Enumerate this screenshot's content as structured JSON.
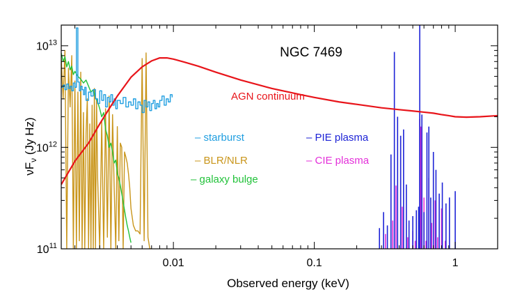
{
  "chart_data": {
    "type": "line",
    "title": "NGC 7469",
    "xlabel": "Observed energy (keV)",
    "ylabel_main": "νF",
    "ylabel_sub": "ν",
    "ylabel_unit": " (Jy Hz)",
    "xscale": "log",
    "yscale": "log",
    "xlim": [
      0.0016,
      2.0
    ],
    "ylim": [
      100000000000.0,
      16000000000000.0
    ],
    "x_ticks": [
      {
        "value": 0.01,
        "label": "0.01"
      },
      {
        "value": 0.1,
        "label": "0.1"
      },
      {
        "value": 1,
        "label": "1"
      }
    ],
    "y_ticks": [
      {
        "value": 100000000000.0,
        "base": "10",
        "exp": "11"
      },
      {
        "value": 1000000000000.0,
        "base": "10",
        "exp": "12"
      },
      {
        "value": 10000000000000.0,
        "base": "10",
        "exp": "13"
      }
    ],
    "annotation": {
      "text": "AGN continuum",
      "color": "#e8141a"
    },
    "legend": [
      {
        "text": "– starburst",
        "color": "#1f9ee0"
      },
      {
        "text": "– BLR/NLR",
        "color": "#c9951a"
      },
      {
        "text": "– galaxy bulge",
        "color": "#22c23a"
      },
      {
        "text": "– PIE plasma",
        "color": "#1c22d6"
      },
      {
        "text": "– CIE plasma",
        "color": "#e32fd9"
      }
    ],
    "series": [
      {
        "name": "AGN continuum",
        "color": "#e8141a",
        "style": "line",
        "x": [
          0.0016,
          0.002,
          0.0025,
          0.003,
          0.0035,
          0.004,
          0.005,
          0.006,
          0.007,
          0.008,
          0.009,
          0.01,
          0.012,
          0.015,
          0.02,
          0.03,
          0.05,
          0.08,
          0.1,
          0.15,
          0.2,
          0.3,
          0.4,
          0.5,
          0.6,
          0.7,
          0.8,
          0.9,
          1.0,
          1.2,
          1.5,
          2.0
        ],
        "y": [
          430000000000.0,
          730000000000.0,
          1100000000000.0,
          1700000000000.0,
          2400000000000.0,
          3200000000000.0,
          4900000000000.0,
          6200000000000.0,
          7100000000000.0,
          7600000000000.0,
          7600000000000.0,
          7400000000000.0,
          6900000000000.0,
          6300000000000.0,
          5500000000000.0,
          4600000000000.0,
          3800000000000.0,
          3300000000000.0,
          3100000000000.0,
          2800000000000.0,
          2650000000000.0,
          2450000000000.0,
          2350000000000.0,
          2280000000000.0,
          2220000000000.0,
          2170000000000.0,
          2100000000000.0,
          2050000000000.0,
          2000000000000.0,
          1980000000000.0,
          2000000000000.0,
          2050000000000.0
        ]
      },
      {
        "name": "starburst",
        "color": "#1f9ee0",
        "style": "step",
        "x": [
          0.0016,
          0.00165,
          0.0017,
          0.00175,
          0.0018,
          0.00185,
          0.0019,
          0.00195,
          0.002,
          0.00205,
          0.0021,
          0.00215,
          0.0022,
          0.00225,
          0.0023,
          0.00235,
          0.0024,
          0.0025,
          0.0026,
          0.0027,
          0.0028,
          0.0029,
          0.003,
          0.0031,
          0.0032,
          0.0033,
          0.0034,
          0.0035,
          0.0036,
          0.0037,
          0.0038,
          0.0039,
          0.004,
          0.0042,
          0.0044,
          0.0046,
          0.0048,
          0.005,
          0.0052,
          0.0054,
          0.0056,
          0.0058,
          0.006,
          0.0062,
          0.0064,
          0.0066,
          0.0068,
          0.007,
          0.0072,
          0.0074,
          0.0076,
          0.0078,
          0.008,
          0.0083,
          0.0086,
          0.0089,
          0.0092,
          0.0095,
          0.0098
        ],
        "y": [
          3900000000000.0,
          4100000000000.0,
          3700000000000.0,
          4200000000000.0,
          3800000000000.0,
          4000000000000.0,
          3600000000000.0,
          4300000000000.0,
          3900000000000.0,
          15000000000000.0,
          4400000000000.0,
          3600000000000.0,
          4000000000000.0,
          3700000000000.0,
          3300000000000.0,
          3900000000000.0,
          2900000000000.0,
          3500000000000.0,
          3200000000000.0,
          3700000000000.0,
          3000000000000.0,
          2700000000000.0,
          3600000000000.0,
          2900000000000.0,
          3300000000000.0,
          2500000000000.0,
          3100000000000.0,
          2800000000000.0,
          3300000000000.0,
          2600000000000.0,
          3000000000000.0,
          2400000000000.0,
          2900000000000.0,
          2700000000000.0,
          3100000000000.0,
          2500000000000.0,
          2800000000000.0,
          2600000000000.0,
          3000000000000.0,
          2400000000000.0,
          2800000000000.0,
          2600000000000.0,
          2200000000000.0,
          2900000000000.0,
          2500000000000.0,
          2800000000000.0,
          2300000000000.0,
          2700000000000.0,
          2900000000000.0,
          2400000000000.0,
          2700000000000.0,
          2500000000000.0,
          2900000000000.0,
          3200000000000.0,
          2600000000000.0,
          3000000000000.0,
          2800000000000.0,
          3300000000000.0,
          3100000000000.0
        ]
      },
      {
        "name": "BLR/NLR",
        "color": "#c9951a",
        "style": "line",
        "x": [
          0.0016,
          0.00165,
          0.0017,
          0.00175,
          0.0018,
          0.00185,
          0.0019,
          0.00195,
          0.002,
          0.00205,
          0.0021,
          0.00215,
          0.0022,
          0.00225,
          0.0023,
          0.00235,
          0.0024,
          0.00245,
          0.0025,
          0.00255,
          0.0026,
          0.00265,
          0.0027,
          0.00275,
          0.0028,
          0.00285,
          0.0029,
          0.003,
          0.0031,
          0.0032,
          0.0033,
          0.0034,
          0.0035,
          0.0036,
          0.0037,
          0.0038,
          0.0039,
          0.004,
          0.0041,
          0.0042,
          0.0043,
          0.0044,
          0.0045,
          0.0046,
          0.0047,
          0.0048,
          0.0049,
          0.005,
          0.0052,
          0.0054,
          0.0056,
          0.0058,
          0.006,
          0.0062,
          0.0064,
          0.0066,
          0.0068,
          0.007
        ],
        "y": [
          7500000000000.0,
          3000000000000.0,
          9000000000000.0,
          100000000000.0,
          6000000000000.0,
          2500000000000.0,
          8000000000000.0,
          100000000000.0,
          4500000000000.0,
          100000000000.0,
          3500000000000.0,
          120000000000.0,
          5500000000000.0,
          100000000000.0,
          2200000000000.0,
          100000000000.0,
          1400000000000.0,
          3000000000000.0,
          100000000000.0,
          1700000000000.0,
          100000000000.0,
          2600000000000.0,
          100000000000.0,
          3800000000000.0,
          100000000000.0,
          2900000000000.0,
          500000000000.0,
          100000000000.0,
          1800000000000.0,
          100000000000.0,
          2400000000000.0,
          130000000000.0,
          3200000000000.0,
          100000000000.0,
          2100000000000.0,
          400000000000.0,
          100000000000.0,
          1600000000000.0,
          120000000000.0,
          1100000000000.0,
          1000000000000.0,
          100000000000.0,
          900000000000.0,
          800000000000.0,
          700000000000.0,
          550000000000.0,
          400000000000.0,
          250000000000.0,
          170000000000.0,
          150000000000.0,
          150000000000.0,
          140000000000.0,
          7500000000000.0,
          120000000000.0,
          8500000000000.0,
          130000000000.0,
          100000000000.0,
          100000000000.0
        ]
      },
      {
        "name": "galaxy bulge",
        "color": "#22c23a",
        "style": "line",
        "x": [
          0.0016,
          0.00165,
          0.0017,
          0.00175,
          0.0018,
          0.00185,
          0.0019,
          0.00195,
          0.002,
          0.0021,
          0.0022,
          0.0023,
          0.0024,
          0.0025,
          0.0026,
          0.0027,
          0.0028,
          0.0029,
          0.003,
          0.0031,
          0.0032,
          0.0033,
          0.0034,
          0.0035,
          0.0036,
          0.0037,
          0.0038,
          0.0039,
          0.004,
          0.0041,
          0.0042,
          0.0043,
          0.0044,
          0.0045,
          0.0046,
          0.0047,
          0.0048,
          0.0049,
          0.005
        ],
        "y": [
          8500000000000.0,
          7000000000000.0,
          7800000000000.0,
          6200000000000.0,
          7000000000000.0,
          5800000000000.0,
          6300000000000.0,
          5200000000000.0,
          5600000000000.0,
          5000000000000.0,
          4700000000000.0,
          4300000000000.0,
          4600000000000.0,
          4000000000000.0,
          3500000000000.0,
          3700000000000.0,
          3100000000000.0,
          2800000000000.0,
          2400000000000.0,
          2000000000000.0,
          2200000000000.0,
          1500000000000.0,
          1300000000000.0,
          1000000000000.0,
          1100000000000.0,
          900000000000.0,
          700000000000.0,
          750000000000.0,
          550000000000.0,
          500000000000.0,
          420000000000.0,
          350000000000.0,
          290000000000.0,
          240000000000.0,
          200000000000.0,
          170000000000.0,
          150000000000.0,
          130000000000.0,
          115000000000.0
        ]
      },
      {
        "name": "PIE plasma",
        "color": "#1c22d6",
        "style": "spikes",
        "x": [
          0.29,
          0.31,
          0.33,
          0.35,
          0.37,
          0.39,
          0.41,
          0.43,
          0.45,
          0.47,
          0.5,
          0.53,
          0.55,
          0.56,
          0.58,
          0.6,
          0.63,
          0.65,
          0.67,
          0.7,
          0.73,
          0.77,
          0.81,
          0.86,
          0.91,
          1.0
        ],
        "y": [
          160000000000.0,
          230000000000.0,
          170000000000.0,
          850000000000.0,
          8700000000000.0,
          2000000000000.0,
          1300000000000.0,
          1500000000000.0,
          430000000000.0,
          190000000000.0,
          210000000000.0,
          240000000000.0,
          260000000000.0,
          16000000000000.0,
          2100000000000.0,
          230000000000.0,
          1400000000000.0,
          1600000000000.0,
          320000000000.0,
          900000000000.0,
          600000000000.0,
          350000000000.0,
          450000000000.0,
          280000000000.0,
          320000000000.0,
          370000000000.0
        ]
      },
      {
        "name": "CIE plasma",
        "color": "#e32fd9",
        "style": "spikes",
        "x": [
          0.32,
          0.36,
          0.38,
          0.42,
          0.46,
          0.5,
          0.52,
          0.56,
          0.57,
          0.6,
          0.62,
          0.65,
          0.68,
          0.72,
          0.75,
          0.8,
          0.85
        ],
        "y": [
          140000000000.0,
          190000000000.0,
          420000000000.0,
          260000000000.0,
          130000000000.0,
          150000000000.0,
          120000000000.0,
          1900000000000.0,
          1600000000000.0,
          320000000000.0,
          120000000000.0,
          500000000000.0,
          180000000000.0,
          300000000000.0,
          130000000000.0,
          250000000000.0,
          120000000000.0
        ]
      }
    ]
  }
}
